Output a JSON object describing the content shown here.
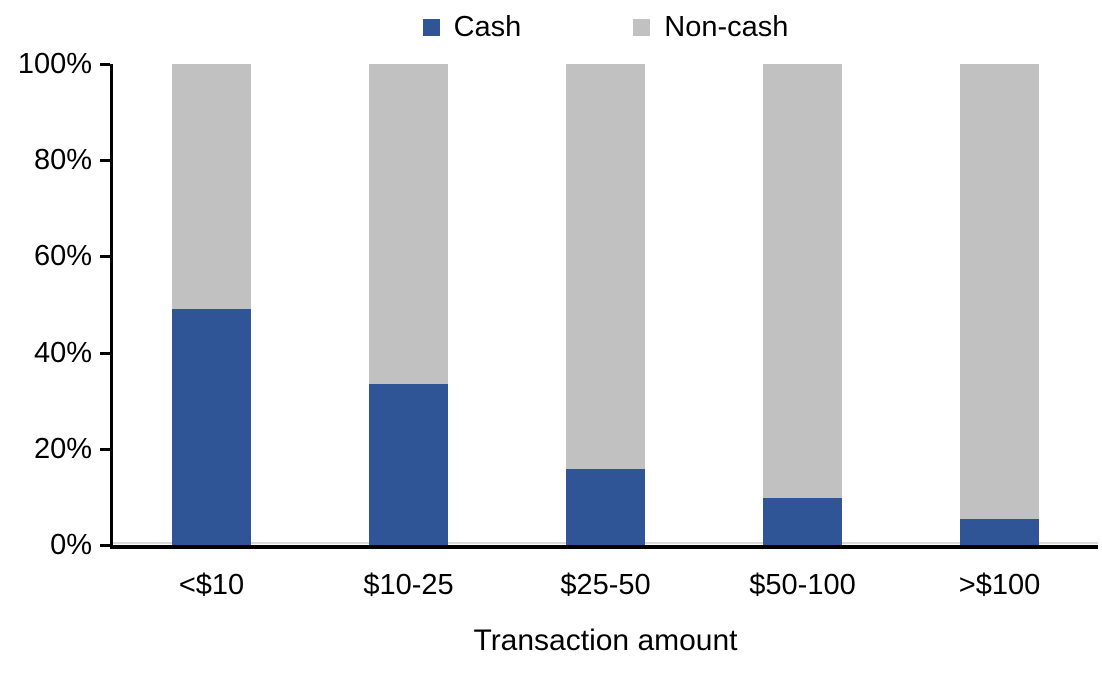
{
  "chart_data": {
    "type": "bar",
    "subtype": "stacked-100",
    "title": "",
    "xlabel": "Transaction amount",
    "ylabel": "",
    "categories": [
      "<$10",
      "$10-25",
      "$25-50",
      "$50-100",
      ">$100"
    ],
    "series": [
      {
        "name": "Cash",
        "color": "#2F5597",
        "values": [
          49,
          33.5,
          15.7,
          9.7,
          5.5
        ]
      },
      {
        "name": "Non-cash",
        "color": "#C1C1C1",
        "values": [
          51,
          66.5,
          84.3,
          90.3,
          94.5
        ]
      }
    ],
    "ylim": [
      0,
      100
    ],
    "y_ticks": [
      "100%",
      "80%",
      "60%",
      "40%",
      "20%",
      "0%"
    ],
    "grid": false,
    "legend_position": "top-center"
  },
  "legend": {
    "items": [
      {
        "label": "Cash",
        "color": "#2F5597"
      },
      {
        "label": "Non-cash",
        "color": "#C1C1C1"
      }
    ]
  },
  "colors": {
    "axis": "#000000",
    "zero_line": "#D9D9D9",
    "background": "#FFFFFF",
    "text": "#000000"
  }
}
